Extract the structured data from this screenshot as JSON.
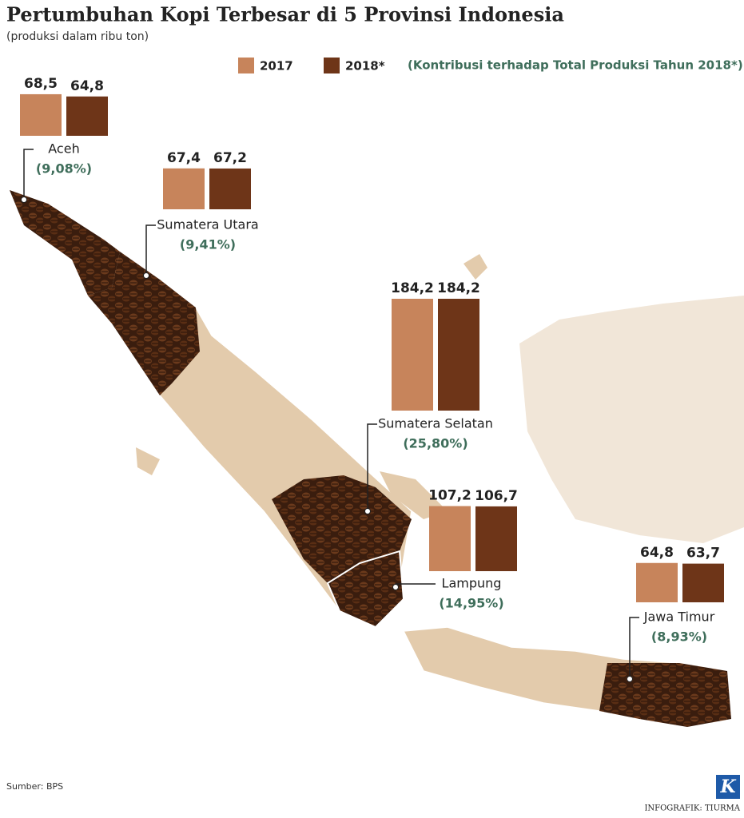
{
  "chart_data": {
    "type": "bar",
    "title": "Pertumbuhan Kopi Terbesar di 5 Provinsi Indonesia",
    "subtitle": "(produksi dalam ribu ton)",
    "legend_note": "(Kontribusi terhadap Total Produksi Tahun 2018*)",
    "categories": [
      "Aceh",
      "Sumatera Utara",
      "Sumatera Selatan",
      "Lampung",
      "Jawa Timur"
    ],
    "series": [
      {
        "name": "2017",
        "color": "#c7845b",
        "values": [
          68.5,
          67.4,
          184.2,
          107.2,
          64.8
        ],
        "value_labels": [
          "68,5",
          "67,4",
          "184,2",
          "107,2",
          "64,8"
        ]
      },
      {
        "name": "2018*",
        "color": "#6e3518",
        "values": [
          64.8,
          67.2,
          184.2,
          106.7,
          63.7
        ],
        "value_labels": [
          "64,8",
          "67,2",
          "184,2",
          "106,7",
          "63,7"
        ]
      }
    ],
    "annotations": [
      "(9,08%)",
      "(9,41%)",
      "(25,80%)",
      "(14,95%)",
      "(8,93%)"
    ],
    "source": "Sumber: BPS",
    "credit": "INFOGRAFIK: TIURMA",
    "logo": "K"
  }
}
